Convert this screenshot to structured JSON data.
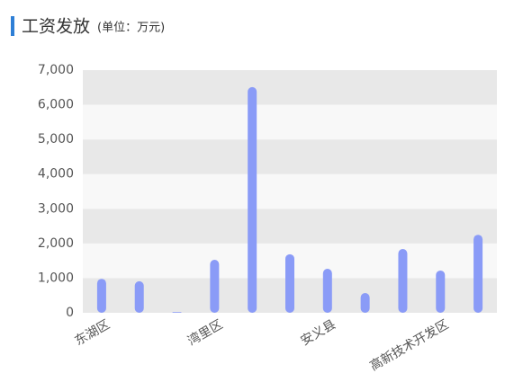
{
  "chart_data": {
    "type": "bar",
    "title": "工资发放",
    "subtitle": "(单位：万元)",
    "categories": [
      "东湖区",
      null,
      null,
      "湾里区",
      null,
      null,
      "安义县",
      null,
      null,
      "高新技术开发区",
      null
    ],
    "values": [
      980,
      910,
      20,
      1530,
      6510,
      1690,
      1270,
      570,
      1840,
      1220,
      2250
    ],
    "color": "#8a9bf7",
    "ylim": [
      0,
      7000
    ],
    "yticks": [
      0,
      {
        "value": 1000,
        "label": "1,000"
      },
      {
        "value": 2000,
        "label": "2,000"
      },
      {
        "value": 3000,
        "label": "3,000"
      },
      {
        "value": 4000,
        "label": "4,000"
      },
      {
        "value": 5000,
        "label": "5,000"
      },
      {
        "value": 6000,
        "label": "6,000"
      },
      {
        "value": 7000,
        "label": "7,000"
      }
    ],
    "grid": true
  }
}
